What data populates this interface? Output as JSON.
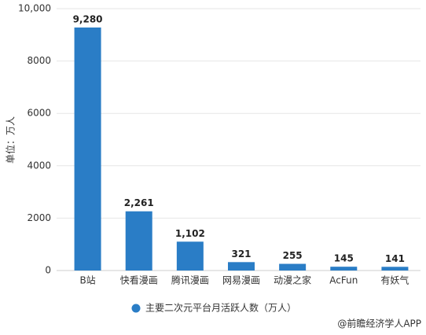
{
  "chart_data": {
    "type": "bar",
    "y_axis_label": "单位：万人",
    "categories": [
      "B站",
      "快看漫画",
      "腾讯漫画",
      "网易漫画",
      "动漫之家",
      "AcFun",
      "有妖气"
    ],
    "series": [
      {
        "name": "主要二次元平台月活跃人数（万人）",
        "color": "#2a7dc6",
        "values": [
          9280,
          2261,
          1102,
          321,
          255,
          145,
          141
        ],
        "value_labels": [
          "9,280",
          "2,261",
          "1,102",
          "321",
          "255",
          "145",
          "141"
        ]
      }
    ],
    "ylim": [
      0,
      10000
    ],
    "yticks": [
      0,
      2000,
      4000,
      6000,
      8000,
      {
        "value": 10000,
        "label": "10,000"
      }
    ],
    "grid": true
  },
  "footer": "@前瞻经济学人APP"
}
